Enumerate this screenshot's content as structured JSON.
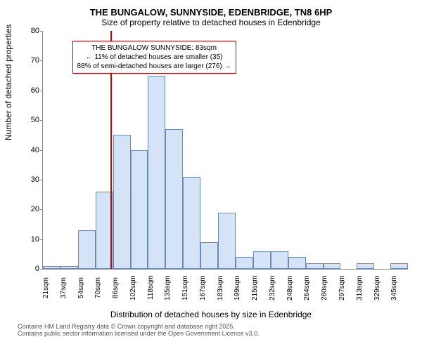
{
  "title": "THE BUNGALOW, SUNNYSIDE, EDENBRIDGE, TN8 6HP",
  "subtitle": "Size of property relative to detached houses in Edenbridge",
  "y_axis_title": "Number of detached properties",
  "x_axis_title": "Distribution of detached houses by size in Edenbridge",
  "footer": {
    "line1": "Contains HM Land Registry data © Crown copyright and database right 2025.",
    "line2": "Contains public sector information licensed under the Open Government Licence v3.0."
  },
  "annotation": {
    "line1": "THE BUNGALOW SUNNYSIDE: 83sqm",
    "line2": "← 11% of detached houses are smaller (35)",
    "line3": "88% of semi-detached houses are larger (276) →"
  },
  "chart": {
    "type": "histogram",
    "bar_fill": "#d4e3f5",
    "bar_border": "#6a8bb8",
    "marker_color": "#cc0000",
    "marker_position_pct": 18.5,
    "background_color": "#ffffff",
    "ylim": [
      0,
      80
    ],
    "ytick_step": 10,
    "yticks": [
      0,
      10,
      20,
      30,
      40,
      50,
      60,
      70,
      80
    ],
    "categories": [
      "21sqm",
      "37sqm",
      "54sqm",
      "70sqm",
      "86sqm",
      "102sqm",
      "118sqm",
      "135sqm",
      "151sqm",
      "167sqm",
      "183sqm",
      "199sqm",
      "215sqm",
      "232sqm",
      "248sqm",
      "264sqm",
      "280sqm",
      "297sqm",
      "313sqm",
      "329sqm",
      "345sqm"
    ],
    "values": [
      1,
      1,
      13,
      26,
      45,
      40,
      65,
      47,
      31,
      9,
      19,
      4,
      6,
      6,
      4,
      2,
      2,
      0,
      2,
      0,
      2
    ]
  }
}
